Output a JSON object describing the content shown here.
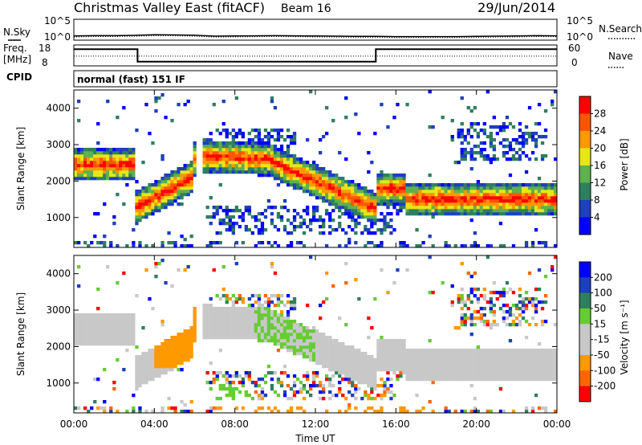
{
  "header": {
    "station": "Christmas Valley East (fitACF)",
    "beam": "Beam 16",
    "date": "29/Jun/2014"
  },
  "sky_panel": {
    "label": "N.Sky",
    "right_label": "N.Search",
    "yticks": [
      "10^5",
      "10^0"
    ]
  },
  "freq_panel": {
    "label_line1": "Freq.",
    "label_line2": "[MHz]",
    "left_ticks": [
      "18",
      "8"
    ],
    "right_ticks": [
      "60",
      "0"
    ],
    "right_label": "Nave"
  },
  "cpid": {
    "label": "CPID",
    "text": "normal (fast) 151 IF"
  },
  "colors": {
    "power": [
      "#0000ff",
      "#1e3fbe",
      "#2f7f5f",
      "#5fb04f",
      "#e6e619",
      "#ff9900",
      "#ff5500",
      "#ff0000"
    ],
    "velocity": [
      "#ff0000",
      "#ff6600",
      "#ff9900",
      "#c8c8c8",
      "#c8c8c8",
      "#66cc33",
      "#2f7f5f",
      "#1e3fbe",
      "#0000ff"
    ],
    "ground_scatter": "#c8c8c8"
  },
  "chart_data": [
    {
      "type": "line",
      "panel": "noise",
      "ylabel": "N.Sky",
      "y2label": "N.Search",
      "yscale": "log",
      "ylim": [
        1,
        100000
      ],
      "yticks": [
        "10^0",
        "10^5"
      ],
      "series": [
        {
          "name": "N.Sky",
          "x": [
            "00:00",
            "01:00",
            "02:00",
            "03:00",
            "04:00",
            "05:00",
            "06:00",
            "07:00",
            "08:00",
            "09:00",
            "10:00",
            "11:00",
            "12:00",
            "13:00",
            "14:00",
            "15:00",
            "16:00",
            "17:00",
            "18:00",
            "19:00",
            "20:00",
            "21:00",
            "22:00",
            "23:00",
            "00:00"
          ],
          "values": [
            10,
            12,
            12,
            14,
            20,
            18,
            15,
            9,
            10,
            11,
            12,
            11,
            10,
            9,
            8,
            8,
            7,
            7,
            7,
            7,
            8,
            9,
            10,
            12,
            11
          ]
        }
      ]
    },
    {
      "type": "line",
      "panel": "frequency",
      "ylabel": "Freq. [MHz]",
      "y2label": "Nave",
      "ylim": [
        8,
        18
      ],
      "y2lim": [
        0,
        60
      ],
      "series": [
        {
          "name": "Freq.",
          "x": [
            "00:00",
            "03:10",
            "03:10",
            "15:00",
            "15:00",
            "16:00",
            "16:00",
            "00:00"
          ],
          "values": [
            16,
            16,
            10,
            10,
            16,
            16,
            16,
            16
          ]
        },
        {
          "name": "Nave",
          "x": [
            "00:00",
            "24:00"
          ],
          "values": [
            28,
            28
          ]
        }
      ]
    },
    {
      "type": "heatmap",
      "panel": "power",
      "xlabel": "",
      "ylabel": "Slant Range [km]",
      "colorbar_label": "Power [dB]",
      "colorbar_ticks": [
        4,
        8,
        12,
        16,
        20,
        24,
        28
      ],
      "colorbar_range": [
        0,
        32
      ],
      "xlim": [
        "00:00",
        "00:00"
      ],
      "xticks": [
        "00:00",
        "04:00",
        "08:00",
        "12:00",
        "16:00",
        "20:00",
        "00:00"
      ],
      "ylim": [
        180,
        4500
      ],
      "yticks": [
        1000,
        2000,
        3000,
        4000
      ]
    },
    {
      "type": "heatmap",
      "panel": "velocity",
      "xlabel": "Time UT",
      "ylabel": "Slant Range [km]",
      "colorbar_label": "Velocity [m s⁻¹]",
      "colorbar_ticks": [
        200,
        100,
        50,
        15,
        -15,
        -50,
        -100,
        -200
      ],
      "xlim": [
        "00:00",
        "00:00"
      ],
      "xticks": [
        "00:00",
        "04:00",
        "08:00",
        "12:00",
        "16:00",
        "20:00",
        "00:00"
      ],
      "ylim": [
        180,
        4500
      ],
      "yticks": [
        1000,
        2000,
        3000,
        4000
      ]
    }
  ]
}
